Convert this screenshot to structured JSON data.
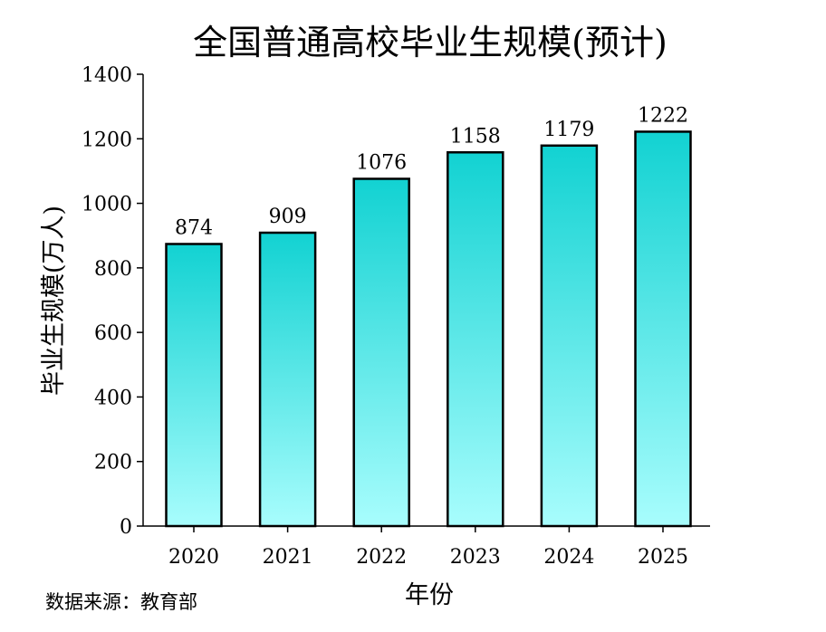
{
  "chart_data": {
    "type": "bar",
    "title": "全国普通高校毕业生规模(预计)",
    "xlabel": "年份",
    "ylabel": "毕业生规模(万人)",
    "categories": [
      "2020",
      "2021",
      "2022",
      "2023",
      "2024",
      "2025"
    ],
    "values": [
      874,
      909,
      1076,
      1158,
      1179,
      1222
    ],
    "data_labels": [
      "874",
      "909",
      "1076",
      "1158",
      "1179",
      "1222"
    ],
    "ylim": [
      0,
      1400
    ],
    "yticks": [
      0,
      200,
      400,
      600,
      800,
      1000,
      1200,
      1400
    ],
    "ytick_labels": [
      "0",
      "200",
      "400",
      "600",
      "800",
      "1000",
      "1200",
      "1400"
    ],
    "grid": false,
    "legend": "none",
    "source": "数据来源：教育部",
    "colors": {
      "bar_top": "#12d2d2",
      "bar_bottom": "#a8fdfd",
      "bar_edge": "#000000",
      "axis": "#000000",
      "text": "#000000"
    }
  }
}
